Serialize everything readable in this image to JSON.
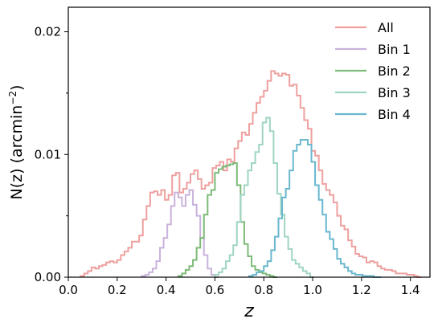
{
  "chart_data": {
    "type": "line",
    "step": true,
    "xlabel": "z",
    "ylabel": "N(z) (arcmin",
    "ylabel_sup": "−2",
    "ylabel_end": ")",
    "xlim": [
      0.0,
      1.48
    ],
    "ylim": [
      0.0,
      0.022
    ],
    "xticks": [
      0.0,
      0.2,
      0.4,
      0.6,
      0.8,
      1.0,
      1.2,
      1.4
    ],
    "xtick_labels": [
      "0.0",
      "0.2",
      "0.4",
      "0.6",
      "0.8",
      "1.0",
      "1.2",
      "1.4"
    ],
    "yticks": [
      0.0,
      0.01,
      0.02
    ],
    "ytick_labels": [
      "0.00",
      "0.01",
      "0.02"
    ],
    "yminor_ticks": [
      0.005,
      0.015
    ],
    "grid": false,
    "legend_position": "top-right",
    "series": [
      {
        "name": "All",
        "color": "#eea09e",
        "x": [
          0.05,
          0.065,
          0.08,
          0.095,
          0.11,
          0.125,
          0.14,
          0.155,
          0.17,
          0.185,
          0.2,
          0.215,
          0.23,
          0.245,
          0.26,
          0.275,
          0.29,
          0.305,
          0.32,
          0.335,
          0.35,
          0.365,
          0.38,
          0.395,
          0.41,
          0.425,
          0.44,
          0.455,
          0.47,
          0.485,
          0.5,
          0.515,
          0.53,
          0.545,
          0.56,
          0.575,
          0.59,
          0.605,
          0.62,
          0.635,
          0.65,
          0.665,
          0.68,
          0.695,
          0.71,
          0.725,
          0.74,
          0.755,
          0.77,
          0.785,
          0.8,
          0.815,
          0.83,
          0.845,
          0.86,
          0.875,
          0.89,
          0.905,
          0.92,
          0.935,
          0.95,
          0.965,
          0.98,
          0.995,
          1.01,
          1.025,
          1.04,
          1.055,
          1.07,
          1.085,
          1.1,
          1.115,
          1.13,
          1.145,
          1.16,
          1.175,
          1.19,
          1.205,
          1.22,
          1.235,
          1.25,
          1.265,
          1.28,
          1.295,
          1.31,
          1.325,
          1.34,
          1.355,
          1.37,
          1.385,
          1.4,
          1.415,
          1.43
        ],
        "values": [
          0.0001,
          0.0003,
          0.0005,
          0.0008,
          0.0007,
          0.0009,
          0.001,
          0.0012,
          0.0013,
          0.0012,
          0.0014,
          0.0018,
          0.0021,
          0.0024,
          0.0029,
          0.0029,
          0.0034,
          0.0047,
          0.0058,
          0.0069,
          0.007,
          0.0067,
          0.0071,
          0.0063,
          0.0067,
          0.0083,
          0.0085,
          0.0069,
          0.0072,
          0.0077,
          0.0084,
          0.0087,
          0.008,
          0.0072,
          0.0075,
          0.0077,
          0.0089,
          0.0091,
          0.0094,
          0.0087,
          0.0096,
          0.0094,
          0.0105,
          0.0111,
          0.0118,
          0.0116,
          0.0125,
          0.0134,
          0.0142,
          0.0147,
          0.0152,
          0.016,
          0.0168,
          0.0166,
          0.0164,
          0.0166,
          0.0165,
          0.0156,
          0.0157,
          0.0148,
          0.0138,
          0.0128,
          0.0121,
          0.0103,
          0.0099,
          0.0087,
          0.0076,
          0.0071,
          0.0067,
          0.0061,
          0.005,
          0.0042,
          0.0039,
          0.003,
          0.0025,
          0.0019,
          0.0017,
          0.0016,
          0.0012,
          0.0013,
          0.0012,
          0.0009,
          0.0007,
          0.0006,
          0.0006,
          0.0005,
          0.0003,
          0.0003,
          0.0003,
          0.0002,
          0.0002,
          0.0001,
          0.0
        ]
      },
      {
        "name": "Bin 1",
        "color": "#c9b2dc",
        "x": [
          0.3,
          0.315,
          0.33,
          0.345,
          0.36,
          0.375,
          0.39,
          0.405,
          0.42,
          0.435,
          0.45,
          0.465,
          0.48,
          0.495,
          0.51,
          0.525,
          0.54,
          0.555,
          0.57,
          0.585,
          0.6
        ],
        "values": [
          0.0001,
          0.0002,
          0.0004,
          0.0007,
          0.0013,
          0.0024,
          0.0032,
          0.0043,
          0.0058,
          0.0069,
          0.0065,
          0.0058,
          0.0067,
          0.0071,
          0.0059,
          0.005,
          0.0032,
          0.0018,
          0.0007,
          0.0002,
          0.0
        ]
      },
      {
        "name": "Bin 2",
        "color": "#7dbb78",
        "x": [
          0.45,
          0.465,
          0.48,
          0.495,
          0.51,
          0.525,
          0.54,
          0.555,
          0.57,
          0.585,
          0.6,
          0.615,
          0.63,
          0.645,
          0.66,
          0.675,
          0.69,
          0.705,
          0.72,
          0.735,
          0.75,
          0.765,
          0.78,
          0.795,
          0.81,
          0.825,
          0.84
        ],
        "values": [
          0.0001,
          0.0003,
          0.0006,
          0.0009,
          0.0014,
          0.0024,
          0.0032,
          0.0051,
          0.0067,
          0.0071,
          0.0085,
          0.0088,
          0.009,
          0.0091,
          0.0092,
          0.0093,
          0.0075,
          0.0045,
          0.0027,
          0.0017,
          0.0009,
          0.0006,
          0.0004,
          0.0003,
          0.0002,
          0.0001,
          0.0
        ]
      },
      {
        "name": "Bin 3",
        "color": "#9fd5c1",
        "x": [
          0.6,
          0.615,
          0.63,
          0.645,
          0.66,
          0.675,
          0.69,
          0.705,
          0.72,
          0.735,
          0.75,
          0.765,
          0.78,
          0.795,
          0.81,
          0.825,
          0.84,
          0.855,
          0.87,
          0.885,
          0.9,
          0.915,
          0.93,
          0.945,
          0.96,
          0.975,
          0.99
        ],
        "values": [
          0.0002,
          0.0004,
          0.0007,
          0.0013,
          0.0018,
          0.0026,
          0.0045,
          0.0067,
          0.0075,
          0.0087,
          0.0093,
          0.0102,
          0.0108,
          0.0126,
          0.013,
          0.0119,
          0.0093,
          0.0068,
          0.0051,
          0.0033,
          0.0023,
          0.0014,
          0.0011,
          0.0008,
          0.0005,
          0.0003,
          0.0
        ]
      },
      {
        "name": "Bin 4",
        "color": "#6ab7ce",
        "x": [
          0.74,
          0.755,
          0.77,
          0.785,
          0.8,
          0.815,
          0.83,
          0.845,
          0.86,
          0.875,
          0.89,
          0.905,
          0.92,
          0.935,
          0.95,
          0.965,
          0.98,
          0.995,
          1.01,
          1.025,
          1.04,
          1.055,
          1.07,
          1.085,
          1.1,
          1.115,
          1.13,
          1.145,
          1.16,
          1.175,
          1.19,
          1.205,
          1.22,
          1.235,
          1.25,
          1.265
        ],
        "values": [
          0.0001,
          0.0002,
          0.0004,
          0.0005,
          0.0009,
          0.0013,
          0.0022,
          0.0033,
          0.0048,
          0.0065,
          0.0072,
          0.0087,
          0.0103,
          0.0108,
          0.0112,
          0.0112,
          0.0108,
          0.0094,
          0.0075,
          0.0063,
          0.0051,
          0.0037,
          0.0031,
          0.0023,
          0.0015,
          0.0011,
          0.0008,
          0.0005,
          0.0003,
          0.0002,
          0.0002,
          0.0001,
          0.0001,
          0.0001,
          0.0,
          0.0
        ]
      }
    ]
  }
}
